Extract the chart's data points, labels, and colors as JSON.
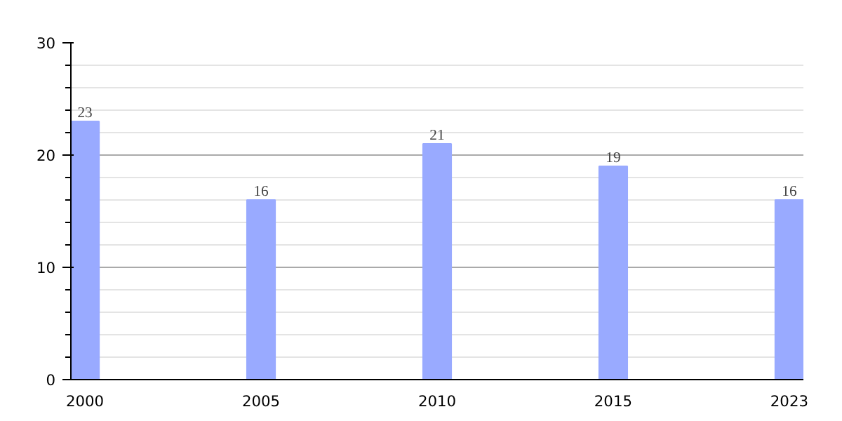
{
  "chart_data": {
    "type": "bar",
    "categories": [
      "2000",
      "2005",
      "2010",
      "2015",
      "2023"
    ],
    "values": [
      23,
      16,
      21,
      19,
      16
    ],
    "color": "#99aaff",
    "ylim": [
      0,
      30
    ],
    "yticks": [
      0,
      10,
      20,
      30
    ],
    "grid": "y",
    "data_labels": true
  }
}
